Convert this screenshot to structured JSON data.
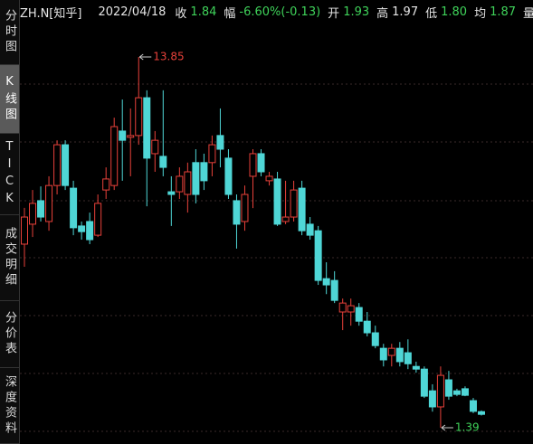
{
  "header": {
    "symbol": "ZH.N[知乎]",
    "date": "2022/04/18",
    "fields": [
      {
        "label": "收",
        "value": "1.84",
        "color": "#3fd35a"
      },
      {
        "label": "幅",
        "value": "-6.60%(-0.13)",
        "color": "#3fd35a"
      },
      {
        "label": "开",
        "value": "1.93",
        "color": "#3fd35a"
      },
      {
        "label": "高",
        "value": "1.97",
        "color": "#e6e6e6"
      },
      {
        "label": "低",
        "value": "1.80",
        "color": "#3fd35a"
      },
      {
        "label": "均",
        "value": "1.87",
        "color": "#3fd35a"
      },
      {
        "label": "量"
      }
    ]
  },
  "tabs": [
    "分时图",
    "K线图",
    "TICK",
    "成交明细",
    "分价表",
    "深度资料"
  ],
  "selected_tab": 1,
  "chart_data": {
    "type": "candlestick",
    "up_color": "#e8413a",
    "down_color": "#4fd6d6",
    "open": [
      7.56,
      8.23,
      9.02,
      8.32,
      9.53,
      10.9,
      9.44,
      8.17,
      8.32,
      7.86,
      9.38,
      9.53,
      11.36,
      11.15,
      11.21,
      12.48,
      10.6,
      10.51,
      9.32,
      9.32,
      9.23,
      10.3,
      10.3,
      10.3,
      11.21,
      10.45,
      9.02,
      8.32,
      9.84,
      10.6,
      9.69,
      9.75,
      8.32,
      8.47,
      9.44,
      8.23,
      8.01,
      6.4,
      6.34,
      5.28,
      5.28,
      5.43,
      4.97,
      4.58,
      4.06,
      3.82,
      4.06,
      3.91,
      3.45,
      3.36,
      2.63,
      2.09,
      3.0,
      2.63,
      2.7,
      2.3,
      1.93
    ],
    "high": [
      8.78,
      9.38,
      9.5,
      9.84,
      11.05,
      11.05,
      9.69,
      8.32,
      8.62,
      9.23,
      10.14,
      11.81,
      12.42,
      12.12,
      13.85,
      12.73,
      11.36,
      12.73,
      9.84,
      10.14,
      10.3,
      10.75,
      10.6,
      11.21,
      12.12,
      10.75,
      9.23,
      9.53,
      10.75,
      10.75,
      9.99,
      9.99,
      9.69,
      9.69,
      9.69,
      8.47,
      8.17,
      6.95,
      6.65,
      5.73,
      5.73,
      5.58,
      5.28,
      4.82,
      4.21,
      4.21,
      4.27,
      4.36,
      3.61,
      3.45,
      2.85,
      3.45,
      3.3,
      2.7,
      2.78,
      2.39,
      1.97
    ],
    "low": [
      6.8,
      7.8,
      8.32,
      8.01,
      9.23,
      9.38,
      7.86,
      7.71,
      7.56,
      7.8,
      9.08,
      9.38,
      9.69,
      9.84,
      10.9,
      8.83,
      9.99,
      9.84,
      8.17,
      9.08,
      8.62,
      8.93,
      9.38,
      9.84,
      10.14,
      9.08,
      7.41,
      8.01,
      8.77,
      9.84,
      9.53,
      8.17,
      8.23,
      8.32,
      7.86,
      7.71,
      6.19,
      5.88,
      5.58,
      4.67,
      4.82,
      4.82,
      4.46,
      4.06,
      3.45,
      3.45,
      3.45,
      3.36,
      3.24,
      2.39,
      1.93,
      1.39,
      2.33,
      2.45,
      2.45,
      1.88,
      1.8
    ],
    "close": [
      8.47,
      8.93,
      8.47,
      9.53,
      10.9,
      9.53,
      8.11,
      7.98,
      7.71,
      8.93,
      9.75,
      11.51,
      11.05,
      11.21,
      12.48,
      10.45,
      11.05,
      10.14,
      9.23,
      9.84,
      9.99,
      9.23,
      9.69,
      10.9,
      10.75,
      9.23,
      8.23,
      9.23,
      10.6,
      9.99,
      9.84,
      8.23,
      8.47,
      9.38,
      8.01,
      7.86,
      6.34,
      6.19,
      5.67,
      5.58,
      5.49,
      4.97,
      4.58,
      4.15,
      3.67,
      4.06,
      3.61,
      3.54,
      3.36,
      2.45,
      2.09,
      3.15,
      2.45,
      2.51,
      2.48,
      1.94,
      1.84
    ],
    "annotations": {
      "high": 13.85,
      "low": 1.39
    }
  }
}
